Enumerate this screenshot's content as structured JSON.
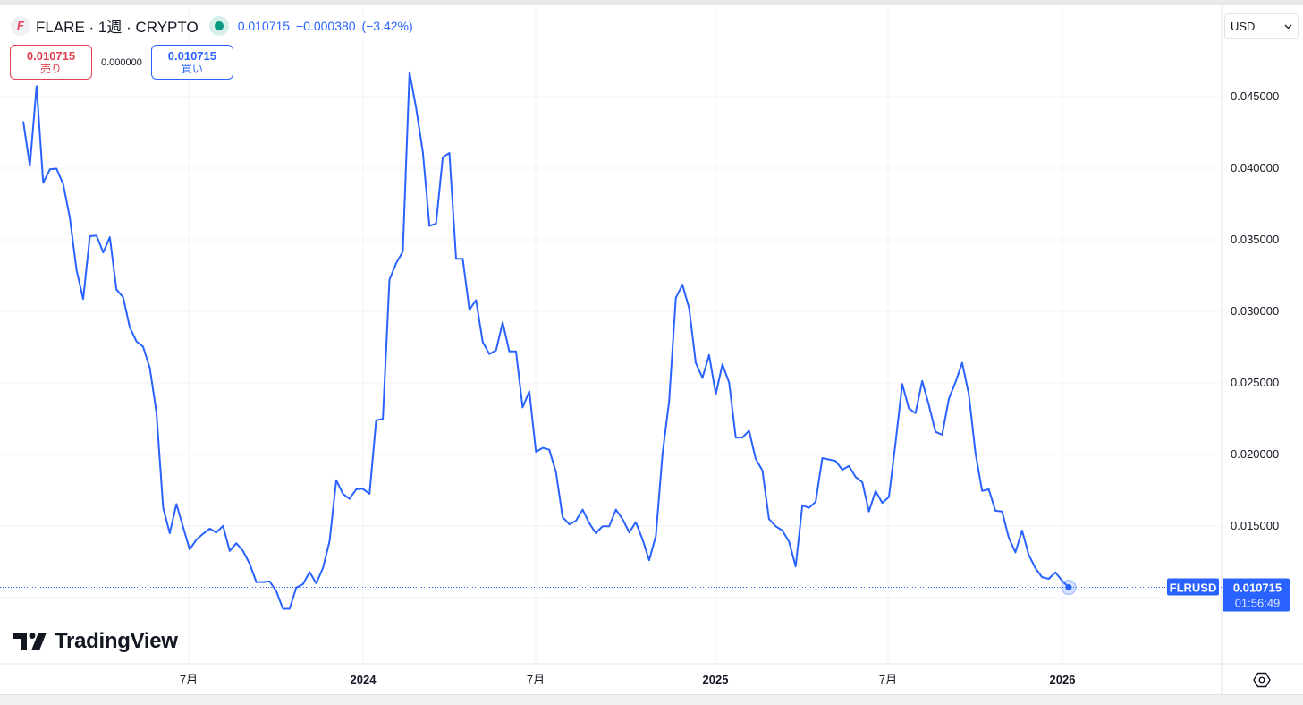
{
  "header": {
    "symbol_icon": "flare-logo-icon",
    "title": "FLARE · 1週 · CRYPTO",
    "market_status_icon": "market-open-dot-icon",
    "last_price": "0.010715",
    "change": "−0.000380",
    "change_pct": "(−3.42%)"
  },
  "trade": {
    "sell_price": "0.010715",
    "sell_label": "売り",
    "spread": "0.000000",
    "buy_price": "0.010715",
    "buy_label": "買い"
  },
  "currency_select": {
    "value": "USD",
    "icon": "chevron-down-icon"
  },
  "price_label": {
    "symbol": "FLRUSD",
    "price": "0.010715",
    "countdown": "01:56:49"
  },
  "brand": {
    "logo_text": "TradingView"
  },
  "settings_icon": "settings-hexagon-icon",
  "colors": {
    "line": "#2962ff",
    "sell": "#e0404f",
    "buy": "#2962ff",
    "status": "#089981",
    "grid": "#f0f3fa"
  },
  "chart_data": {
    "type": "line",
    "interval": "1週",
    "symbol": "FLRUSD",
    "ylim": [
      0.0075,
      0.0495
    ],
    "y_ticks": [
      "0.045000",
      "0.040000",
      "0.035000",
      "0.030000",
      "0.025000",
      "0.020000",
      "0.015000"
    ],
    "y_tick_values": [
      0.045,
      0.04,
      0.035,
      0.03,
      0.025,
      0.02,
      0.015
    ],
    "x_ticks": [
      "7月",
      "2024",
      "7月",
      "2025",
      "7月",
      "2026"
    ],
    "grid": true,
    "values": [
      0.04327,
      0.04016,
      0.04574,
      0.03898,
      0.03992,
      0.03997,
      0.03888,
      0.03653,
      0.03288,
      0.03086,
      0.03525,
      0.0353,
      0.03412,
      0.03518,
      0.03153,
      0.03098,
      0.02888,
      0.0279,
      0.02753,
      0.02605,
      0.02296,
      0.0163,
      0.0145,
      0.01654,
      0.01494,
      0.01336,
      0.01405,
      0.01445,
      0.01482,
      0.01455,
      0.01501,
      0.01326,
      0.0138,
      0.01326,
      0.01237,
      0.01109,
      0.01109,
      0.01114,
      0.01045,
      0.00922,
      0.00922,
      0.0107,
      0.01094,
      0.01178,
      0.011,
      0.01206,
      0.01394,
      0.0182,
      0.01725,
      0.0169,
      0.01757,
      0.0176,
      0.01725,
      0.02239,
      0.02249,
      0.03221,
      0.03337,
      0.03417,
      0.0467,
      0.0442,
      0.04114,
      0.03597,
      0.03613,
      0.04076,
      0.04106,
      0.03367,
      0.03367,
      0.03011,
      0.03079,
      0.02785,
      0.02702,
      0.02728,
      0.02923,
      0.0272,
      0.0272,
      0.02329,
      0.02442,
      0.02018,
      0.02046,
      0.02033,
      0.01876,
      0.01562,
      0.01512,
      0.01537,
      0.01615,
      0.0152,
      0.0145,
      0.01499,
      0.01499,
      0.01615,
      0.01549,
      0.01456,
      0.01527,
      0.01406,
      0.01261,
      0.01431,
      0.02003,
      0.02372,
      0.03094,
      0.03186,
      0.03021,
      0.0264,
      0.02535,
      0.02695,
      0.02422,
      0.0263,
      0.02502,
      0.02118,
      0.02118,
      0.02166,
      0.0197,
      0.01888,
      0.01549,
      0.01499,
      0.01469,
      0.01391,
      0.01218,
      0.01645,
      0.01627,
      0.0167,
      0.01975,
      0.01965,
      0.01955,
      0.01893,
      0.0192,
      0.01843,
      0.01807,
      0.01602,
      0.01745,
      0.01662,
      0.01703,
      0.02083,
      0.02492,
      0.02321,
      0.02289,
      0.02514,
      0.02346,
      0.02158,
      0.02138,
      0.02389,
      0.02504,
      0.0264,
      0.02422,
      0.02008,
      0.01745,
      0.01757,
      0.01607,
      0.01602,
      0.01419,
      0.01316,
      0.01469,
      0.01299,
      0.01206,
      0.01143,
      0.01131,
      0.01176,
      0.01118,
      0.010715
    ],
    "last_value": 0.010715
  }
}
